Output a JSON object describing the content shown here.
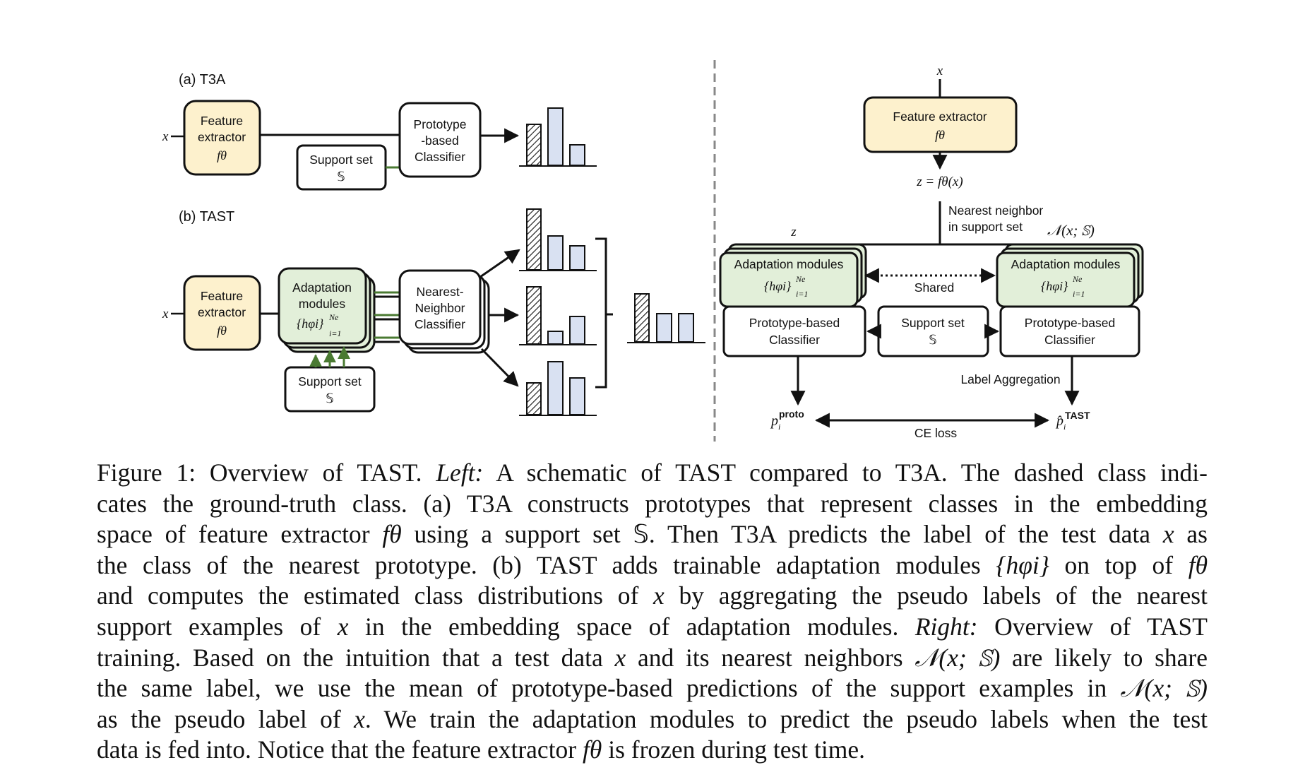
{
  "left_panel": {
    "t3a": {
      "label": "(a) T3A",
      "input": "x",
      "feature_extractor": [
        "Feature",
        "extractor",
        "fθ"
      ],
      "support_set": [
        "Support set",
        "𝕊"
      ],
      "classifier": [
        "Prototype",
        "-based",
        "Classifier"
      ]
    },
    "tast": {
      "label": "(b) TAST",
      "input": "x",
      "feature_extractor": [
        "Feature",
        "extractor",
        "fθ"
      ],
      "adaptation_modules": [
        "Adaptation",
        "modules",
        "{hφi}",
        "Ne",
        "i=1"
      ],
      "classifier": [
        "Nearest-",
        "Neighbor",
        "Classifier"
      ],
      "support_set": [
        "Support set",
        "𝕊"
      ]
    }
  },
  "right_panel": {
    "input": "x",
    "feature_extractor": [
      "Feature extractor",
      "fθ"
    ],
    "embedding": "z = fθ(x)",
    "nn_label": [
      "Nearest neighbor",
      "in support set"
    ],
    "z_label": "z",
    "neighbors": "𝒩(x; 𝕊)",
    "adaptation_title": "Adaptation modules",
    "adaptation_math": "{hφi}",
    "adaptation_sup": "Ne",
    "adaptation_sub": "i=1",
    "shared": "Shared",
    "proto_classifier": [
      "Prototype-based",
      "Classifier"
    ],
    "support_set": [
      "Support set",
      "𝕊"
    ],
    "label_aggregation": "Label Aggregation",
    "p_proto": "p",
    "p_proto_sup": "proto",
    "p_proto_sub": "i",
    "p_tast": "p̂",
    "p_tast_sup": "TAST",
    "p_tast_sub": "i",
    "loss": "CE loss"
  },
  "caption": {
    "lines": [
      [
        "Figure 1: Overview of TAST. ",
        "Left:",
        " A schematic of TAST compared to T3A. The dashed class indi-"
      ],
      [
        "cates the ground-truth class. (a) T3A constructs prototypes that represent classes in the embedding"
      ],
      [
        "space of feature extractor ",
        "fθ",
        " using a support set 𝕊. Then T3A predicts the label of the test data ",
        "x",
        " as"
      ],
      [
        "the class of the nearest prototype. (b) TAST adds trainable adaptation modules ",
        "{hφi}",
        " on top of ",
        "fθ"
      ],
      [
        "and computes the estimated class distributions of ",
        "x",
        " by aggregating the pseudo labels of the nearest"
      ],
      [
        "support examples of ",
        "x",
        " in the embedding space of adaptation modules. ",
        "Right:",
        " Overview of TAST"
      ],
      [
        "training. Based on the intuition that a test data ",
        "x",
        " and its nearest neighbors ",
        "𝒩(x; 𝕊)",
        " are likely to share"
      ],
      [
        "the same label, we use the mean of prototype-based predictions of the support examples in ",
        "𝒩(x; 𝕊)"
      ],
      [
        "as the pseudo label of ",
        "x",
        ". We train the adaptation modules to predict the pseudo labels when the test"
      ],
      [
        "data is fed into. Notice that the feature extractor ",
        "fθ",
        " is frozen during test time."
      ]
    ]
  }
}
